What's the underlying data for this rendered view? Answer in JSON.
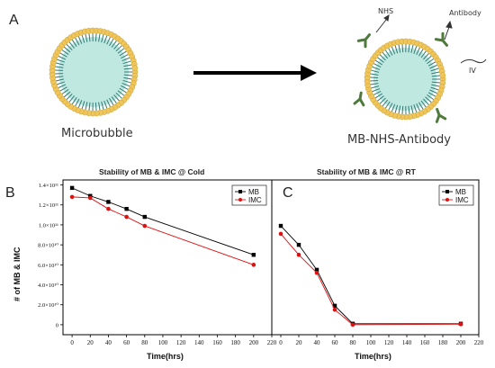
{
  "panel_a": {
    "letter": "A",
    "microbubble_caption": "Microbubble",
    "complex_caption": "MB-NHS-Antibody",
    "label_nhs": "NHS",
    "label_antibody": "Antibody",
    "label_iv": "IV",
    "colors": {
      "lipid_head": "#f0c65a",
      "lipid_tail": "#2f7b76",
      "core": "#bfe8e0",
      "arrow": "#000000",
      "antibody": "#4f7a3c"
    }
  },
  "chart_data": [
    {
      "type": "line",
      "panel_letter": "B",
      "title": "Stability of MB & IMC @ Cold",
      "xlabel": "Time(hrs)",
      "ylabel": "# of MB & IMC",
      "xlim": [
        -10,
        220
      ],
      "ylim": [
        -10000000000,
        145000000000
      ],
      "x_ticks": [
        "0",
        "20",
        "40",
        "60",
        "80",
        "100",
        "120",
        "140",
        "160",
        "180",
        "200",
        "220"
      ],
      "y_tick_values": [
        0,
        20000000000,
        40000000000,
        60000000000,
        80000000000,
        100000000000,
        120000000000,
        140000000000
      ],
      "y_tick_labels": [
        "0",
        "2.0×10¹⁰",
        "4.0×10¹⁰",
        "6.0×10¹⁰",
        "8.0×10¹⁰",
        "1.0×10¹¹",
        "1.2×10¹¹",
        "1.4×10¹¹"
      ],
      "legend_position": "top-right",
      "series": [
        {
          "name": "MB",
          "color": "#000000",
          "marker": "square",
          "x": [
            0,
            20,
            40,
            60,
            80,
            200
          ],
          "y": [
            137000000000,
            129000000000,
            123000000000,
            116000000000,
            108000000000,
            70000000000
          ]
        },
        {
          "name": "IMC",
          "color": "#e01010",
          "marker": "circle",
          "x": [
            0,
            20,
            40,
            60,
            80,
            200
          ],
          "y": [
            128000000000,
            127000000000,
            116000000000,
            108000000000,
            99000000000,
            60000000000
          ]
        }
      ]
    },
    {
      "type": "line",
      "panel_letter": "C",
      "title": "Stability of MB & IMC @ RT",
      "xlabel": "Time(hrs)",
      "xlim": [
        -10,
        220
      ],
      "ylim": [
        -10000000000,
        145000000000
      ],
      "x_ticks": [
        "0",
        "20",
        "40",
        "60",
        "80",
        "100",
        "120",
        "140",
        "160",
        "180",
        "200",
        "220"
      ],
      "legend_position": "top-right",
      "series": [
        {
          "name": "MB",
          "color": "#000000",
          "marker": "square",
          "x": [
            0,
            20,
            40,
            60,
            80,
            200
          ],
          "y": [
            99000000000,
            80000000000,
            55000000000,
            19000000000,
            1000000000,
            1000000000
          ]
        },
        {
          "name": "IMC",
          "color": "#e01010",
          "marker": "circle",
          "x": [
            0,
            20,
            40,
            60,
            80,
            200
          ],
          "y": [
            91000000000,
            70000000000,
            52000000000,
            15000000000,
            0,
            500000000
          ]
        }
      ]
    }
  ]
}
